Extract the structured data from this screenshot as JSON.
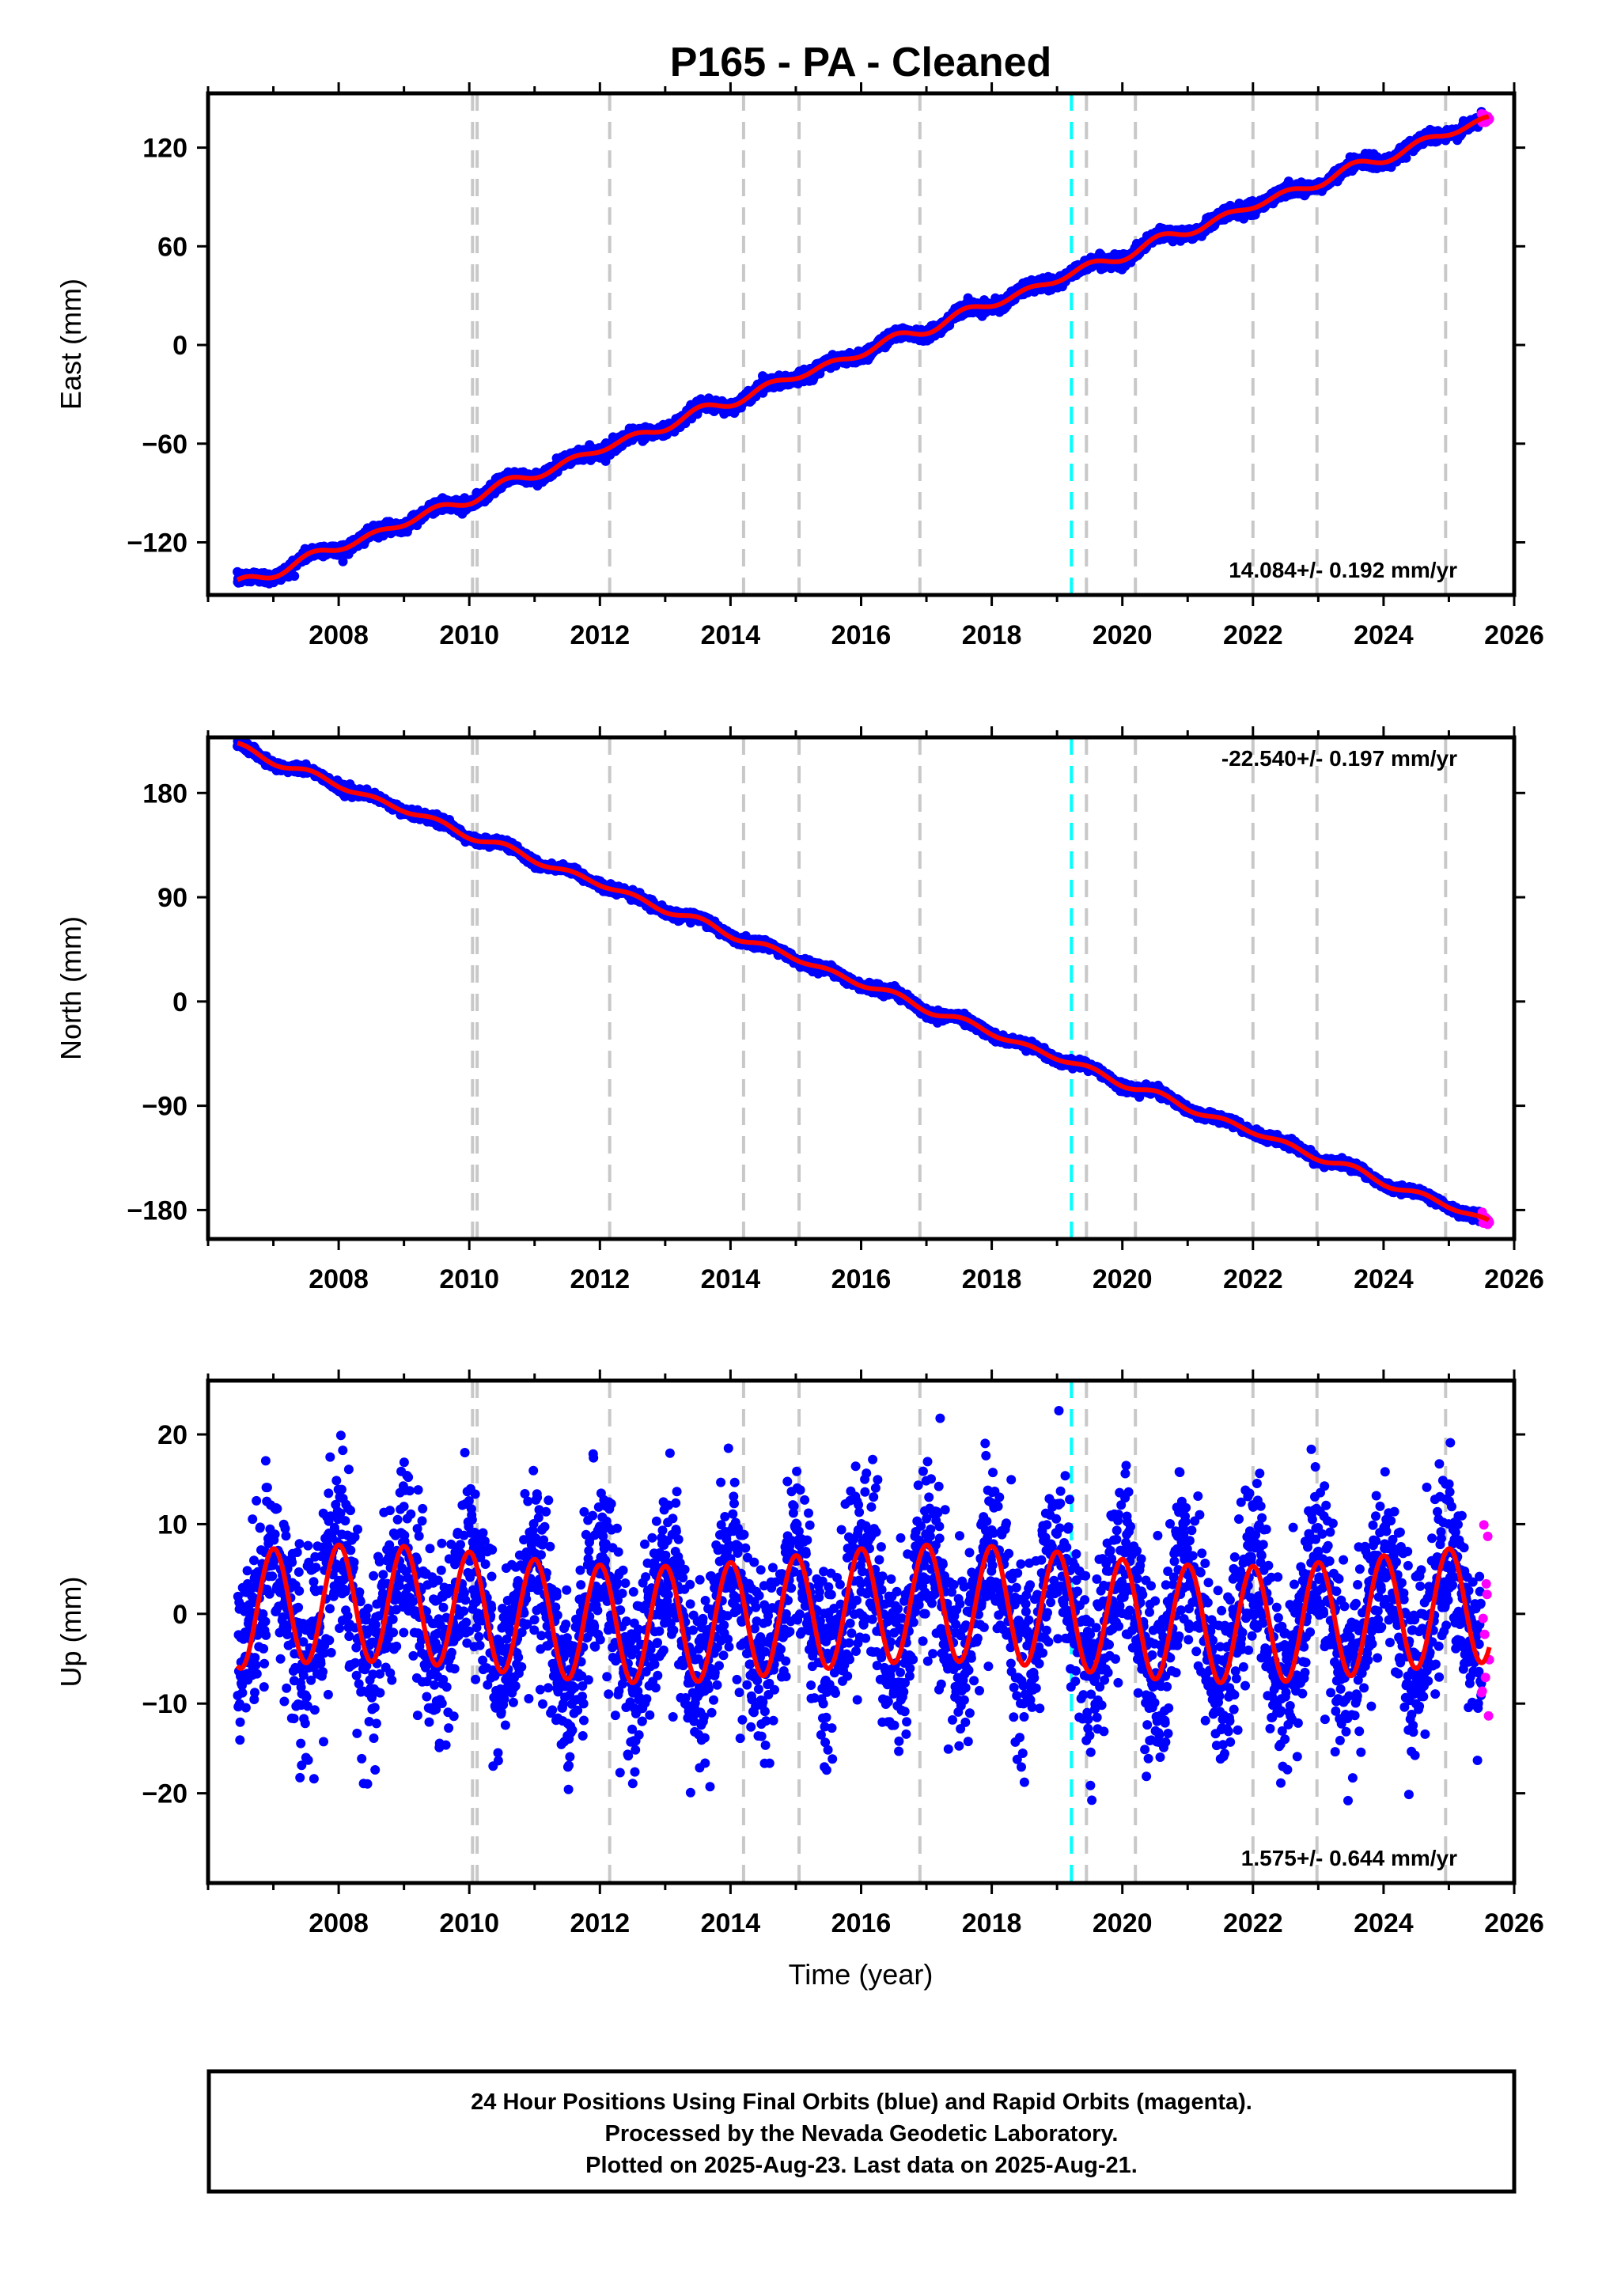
{
  "title": "P165  - PA - Cleaned",
  "colors": {
    "final_orbits": "#0000ff",
    "rapid_orbits": "#ff00ff",
    "model": "#ff0000",
    "reference_line": "#00ffff",
    "event_lines": "#c8c8c8"
  },
  "chart_data": [
    {
      "type": "scatter",
      "panel": "east",
      "ylabel": "East (mm)",
      "xlim": [
        2006.0,
        2026.0
      ],
      "ylim": [
        -152,
        153
      ],
      "yticks": [
        -120,
        -60,
        0,
        60,
        120
      ],
      "xticks": [
        2008,
        2010,
        2012,
        2014,
        2016,
        2018,
        2020,
        2022,
        2024,
        2026
      ],
      "rate_text": "14.084+/- 0.192 mm/yr",
      "trend": {
        "start": [
          2006.45,
          -146
        ],
        "end": [
          2025.62,
          138
        ]
      },
      "series": [
        {
          "name": "Final Orbits",
          "color": "#0000ff",
          "x_range": [
            2006.45,
            2025.5
          ]
        },
        {
          "name": "Rapid Orbits",
          "color": "#ff00ff",
          "x_range": [
            2025.5,
            2025.62
          ]
        }
      ]
    },
    {
      "type": "scatter",
      "panel": "north",
      "ylabel": "North (mm)",
      "xlim": [
        2006.0,
        2026.0
      ],
      "ylim": [
        -205,
        228
      ],
      "yticks": [
        -180,
        -90,
        0,
        90,
        180
      ],
      "xticks": [
        2008,
        2010,
        2012,
        2014,
        2016,
        2018,
        2020,
        2022,
        2024,
        2026
      ],
      "rate_text": "-22.540+/- 0.197 mm/yr",
      "trend": {
        "start": [
          2006.45,
          220
        ],
        "end": [
          2025.62,
          -190
        ]
      },
      "series": [
        {
          "name": "Final Orbits",
          "color": "#0000ff",
          "x_range": [
            2006.45,
            2025.5
          ]
        },
        {
          "name": "Rapid Orbits",
          "color": "#ff00ff",
          "x_range": [
            2025.5,
            2025.62
          ]
        }
      ]
    },
    {
      "type": "scatter",
      "panel": "up",
      "ylabel": "Up (mm)",
      "xlabel": "Time (year)",
      "xlim": [
        2006.0,
        2026.0
      ],
      "ylim": [
        -30,
        26
      ],
      "yticks": [
        -20,
        -10,
        0,
        10,
        20
      ],
      "xticks": [
        2008,
        2010,
        2012,
        2014,
        2016,
        2018,
        2020,
        2022,
        2024,
        2026
      ],
      "rate_text": "1.575+/- 0.644 mm/yr",
      "seasonal_amplitude_mm": 6.5,
      "scatter_sd_mm": 5.0,
      "series": [
        {
          "name": "Final Orbits",
          "color": "#0000ff",
          "x_range": [
            2006.45,
            2025.5
          ]
        },
        {
          "name": "Rapid Orbits",
          "color": "#ff00ff",
          "x_range": [
            2025.5,
            2025.62
          ]
        }
      ]
    }
  ],
  "event_lines": [
    2010.05,
    2010.12,
    2012.15,
    2014.2,
    2015.05,
    2016.9,
    2019.45,
    2020.2,
    2022.0,
    2022.98,
    2024.95
  ],
  "reference_line": 2019.22,
  "footer": {
    "line1": "24 Hour Positions Using Final Orbits (blue) and Rapid Orbits (magenta).",
    "line2": "Processed by the Nevada Geodetic Laboratory.",
    "line3": "Plotted on 2025-Aug-23. Last data on 2025-Aug-21."
  }
}
